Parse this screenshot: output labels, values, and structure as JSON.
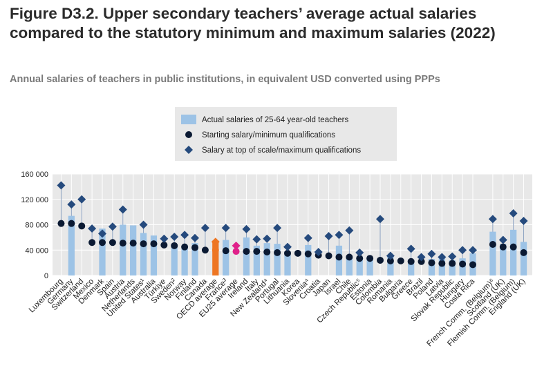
{
  "title": "Figure D3.2. Upper secondary teachers’ average actual salaries compared to the statutory minimum and maximum salaries (2022)",
  "subtitle": "Annual salaries of teachers in public institutions, in equivalent USD converted using PPPs",
  "colors": {
    "bar": "#9dc3e6",
    "bar_highlight": "#ee7623",
    "bar_eu": "#e6e6e6",
    "marker": "#0b1a33",
    "marker_max": "#254a7d",
    "highlight_oecd": "#ee7623",
    "highlight_eu": "#e0218a",
    "plot_bg": "#e8e8e8",
    "legend_bg": "#e8e8e8"
  },
  "chart_data": {
    "type": "bar",
    "ylim": [
      0,
      160000
    ],
    "yticks": [
      0,
      40000,
      80000,
      120000,
      160000
    ],
    "ytick_labels": [
      "0",
      "40 000",
      "80 000",
      "120 000",
      "160 000"
    ],
    "grid": true,
    "legend_position": "top-center",
    "legend": [
      {
        "marker": "bar",
        "label": "Actual salaries of 25-64 year-old teachers"
      },
      {
        "marker": "circle",
        "label": "Starting salary/minimum qualifications"
      },
      {
        "marker": "diamond",
        "label": "Salary at top of scale/maximum qualifications"
      }
    ],
    "categories": [
      "Luxembourg",
      "Germany",
      "Switzerland",
      "Mexico",
      "Denmark",
      "Spain",
      "Austria",
      "Netherlands",
      "United States¹",
      "Australia",
      "Türkiye",
      "Sweden²",
      "Norway",
      "Finland",
      "Canada",
      "OECD average",
      "France³",
      "EU25 average",
      "Ireland",
      "Italy",
      "New Zealand⁴",
      "Portugal",
      "Lithuania",
      "Korea",
      "Slovenia⁴",
      "Croatia",
      "Japan",
      "Israel",
      "Chile",
      "Czech Republic⁵",
      "Estonia",
      "Colombia",
      "Romania",
      "Bulgaria",
      "Greece",
      "Brazil",
      "Poland",
      "Latvia",
      "Slovak Republic",
      "Hungary",
      "Costa Rica",
      "French Comm. (Belgium)⁶",
      "Scotland (UK)",
      "Flemish Comm. (Belgium)",
      "England (UK)"
    ],
    "groups": [
      41
    ],
    "highlights": [
      15,
      17
    ],
    "series": [
      {
        "name": "Actual salaries of 25-64 year-old teachers",
        "kind": "bar",
        "values": [
          null,
          94000,
          null,
          null,
          74000,
          null,
          80000,
          79000,
          67000,
          63000,
          null,
          47000,
          47000,
          51000,
          null,
          55000,
          56000,
          null,
          60000,
          47000,
          51000,
          50000,
          38000,
          null,
          48000,
          null,
          null,
          47000,
          28000,
          30000,
          28000,
          null,
          32000,
          null,
          25000,
          null,
          26000,
          31000,
          24000,
          27000,
          35000,
          69000,
          50000,
          72000,
          53000
        ]
      },
      {
        "name": "Starting salary/minimum qualifications",
        "kind": "circle",
        "values": [
          82000,
          82000,
          78000,
          52000,
          52000,
          52000,
          51000,
          51000,
          50000,
          50000,
          48000,
          47000,
          45000,
          44000,
          40000,
          40000,
          39000,
          38000,
          38000,
          38000,
          37000,
          36000,
          35000,
          35000,
          34000,
          32000,
          31000,
          29000,
          29000,
          27000,
          27000,
          24000,
          23000,
          23000,
          22000,
          22000,
          20000,
          19000,
          19000,
          18000,
          17000,
          49000,
          45000,
          45000,
          36000
        ]
      },
      {
        "name": "Salary at top of scale/maximum qualifications",
        "kind": "diamond",
        "values": [
          142000,
          112000,
          120000,
          74000,
          66000,
          77000,
          104000,
          null,
          80000,
          null,
          58000,
          61000,
          64000,
          59000,
          75000,
          53000,
          75000,
          47000,
          73000,
          57000,
          58000,
          75000,
          45000,
          null,
          59000,
          37000,
          62000,
          64000,
          71000,
          36000,
          null,
          89000,
          31000,
          null,
          42000,
          29000,
          34000,
          29000,
          30000,
          40000,
          40000,
          89000,
          56000,
          98000,
          86000
        ]
      }
    ]
  }
}
